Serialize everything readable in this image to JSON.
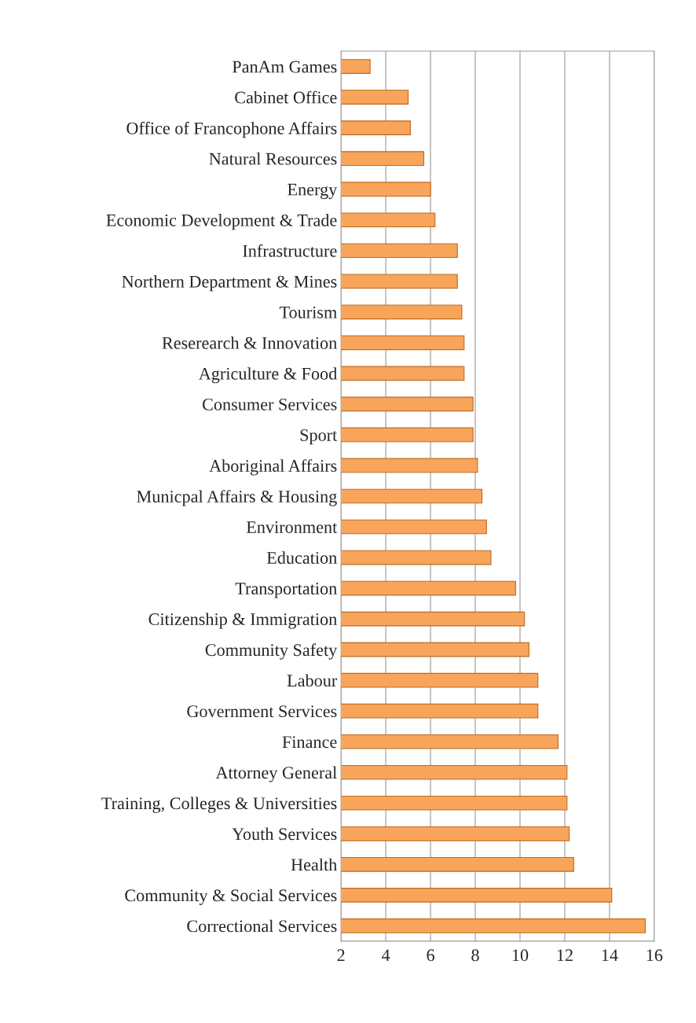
{
  "chart_data": {
    "type": "bar",
    "orientation": "horizontal",
    "categories": [
      "PanAm Games",
      "Cabinet Office",
      "Office of Francophone Affairs",
      "Natural Resources",
      "Energy",
      "Economic Development & Trade",
      "Infrastructure",
      "Northern Department & Mines",
      "Tourism",
      "Reserearch & Innovation",
      "Agriculture & Food",
      "Consumer Services",
      "Sport",
      "Aboriginal Affairs",
      "Municpal Affairs & Housing",
      "Environment",
      "Education",
      "Transportation",
      "Citizenship & Immigration",
      "Community Safety",
      "Labour",
      "Government Services",
      "Finance",
      "Attorney General",
      "Training, Colleges & Universities",
      "Youth Services",
      "Health",
      "Community & Social Services",
      "Correctional Services"
    ],
    "values": [
      3.3,
      5.0,
      5.1,
      5.7,
      6.0,
      6.2,
      7.2,
      7.2,
      7.4,
      7.5,
      7.5,
      7.9,
      7.9,
      8.1,
      8.3,
      8.5,
      8.7,
      9.8,
      10.2,
      10.4,
      10.8,
      10.8,
      11.7,
      12.1,
      12.1,
      12.2,
      12.4,
      14.1,
      15.6
    ],
    "color": "#f8a55b",
    "xlim": [
      2,
      16
    ],
    "xticks": [
      2,
      4,
      6,
      8,
      10,
      12,
      14,
      16
    ],
    "grid": "x"
  }
}
